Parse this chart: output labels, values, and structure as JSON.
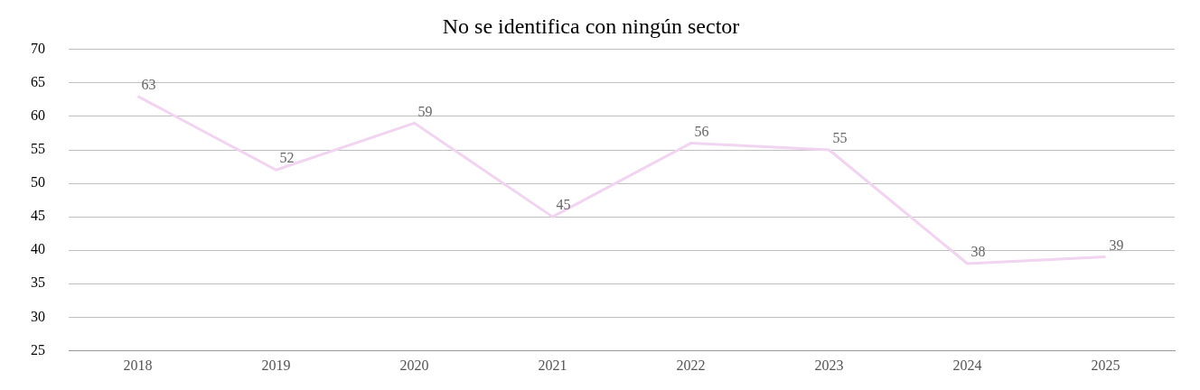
{
  "chart_data": {
    "type": "line",
    "title": "No se identifica con ningún sector",
    "categories": [
      "2018",
      "2019",
      "2020",
      "2021",
      "2022",
      "2023",
      "2024",
      "2025"
    ],
    "series": [
      {
        "color": "#f0d4f0",
        "values": [
          63,
          52,
          59,
          45,
          56,
          55,
          38,
          39
        ]
      }
    ],
    "ylim": [
      25,
      70
    ],
    "yticks": [
      25,
      30,
      35,
      40,
      45,
      50,
      55,
      60,
      65,
      70
    ],
    "grid": "y",
    "legend": false,
    "marker": "none",
    "line_style": "solid",
    "data_labels": true
  }
}
